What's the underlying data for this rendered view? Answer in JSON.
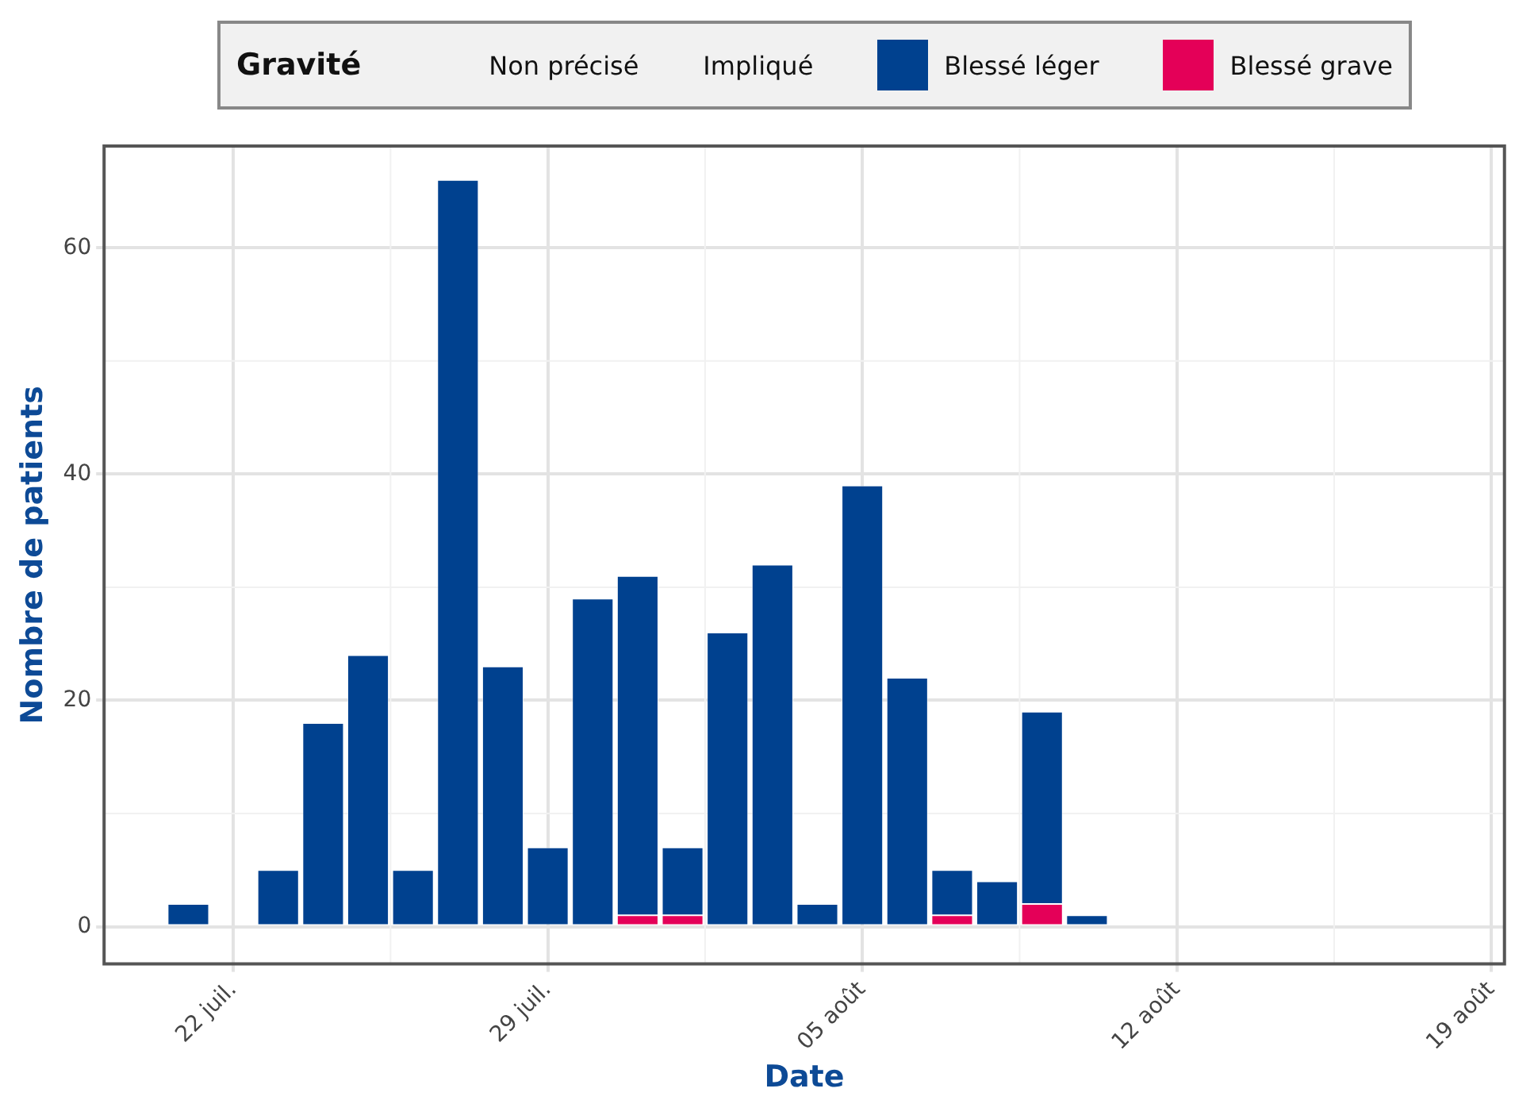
{
  "chart_data": {
    "type": "bar",
    "stacked": true,
    "xlabel": "Date",
    "ylabel": "Nombre de patients",
    "legend_title": "Gravité",
    "legend": "top",
    "grid": true,
    "x": [
      "--07-21",
      "--07-23",
      "--07-24",
      "--07-25",
      "--07-26",
      "--07-27",
      "--07-28",
      "--07-29",
      "--07-30",
      "--07-31",
      "--08-01",
      "--08-02",
      "--08-03",
      "--08-04",
      "--08-05",
      "--08-06",
      "--08-07",
      "--08-08",
      "--08-09",
      "--08-10"
    ],
    "xlim": [
      "--07-19T03:00",
      "--08-19T07:00"
    ],
    "xticks": [
      {
        "value": "--07-22",
        "label": "22 juil."
      },
      {
        "value": "--07-29",
        "label": "29 juil."
      },
      {
        "value": "--08-05",
        "label": "05 août"
      },
      {
        "value": "--08-12",
        "label": "12 août"
      },
      {
        "value": "--08-19",
        "label": "19 août"
      }
    ],
    "ylim": [
      -3.3,
      69
    ],
    "yticks": [
      0,
      20,
      40,
      60
    ],
    "series": [
      {
        "name": "Non précisé",
        "values": [
          null,
          null,
          null,
          null,
          null,
          null,
          null,
          null,
          null,
          null,
          null,
          null,
          null,
          null,
          null,
          null,
          null,
          null,
          null,
          null
        ]
      },
      {
        "name": "Impliqué",
        "values": [
          null,
          null,
          null,
          null,
          null,
          null,
          null,
          null,
          null,
          null,
          null,
          null,
          null,
          null,
          null,
          null,
          null,
          null,
          null,
          null
        ]
      },
      {
        "name": "Blessé grave",
        "color": "#e40058",
        "values": [
          0,
          0,
          0,
          0,
          0,
          0,
          0,
          0,
          0,
          1,
          1,
          0,
          0,
          0,
          0,
          0,
          1,
          0,
          2,
          0
        ]
      },
      {
        "name": "Blessé léger",
        "color": "#00418f",
        "values": [
          2,
          5,
          18,
          24,
          5,
          66,
          23,
          7,
          29,
          30,
          6,
          26,
          32,
          2,
          39,
          22,
          4,
          4,
          17,
          1
        ]
      }
    ]
  }
}
